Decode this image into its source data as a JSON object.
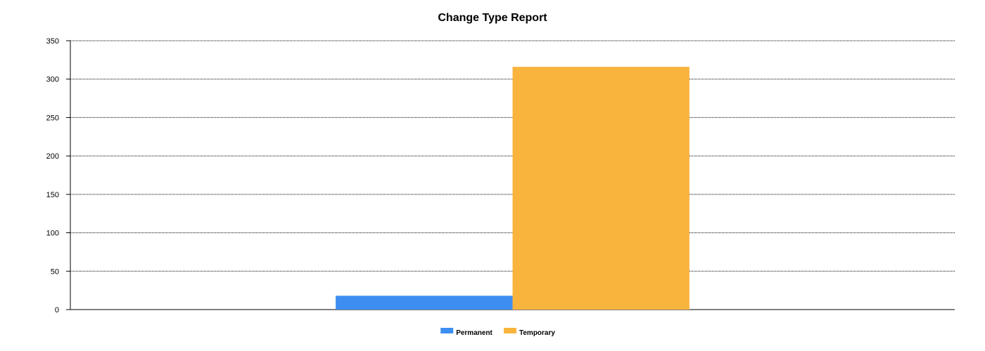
{
  "chart_data": {
    "type": "bar",
    "title": "Change Type Report",
    "xlabel": "",
    "ylabel": "",
    "ylim": [
      0,
      350
    ],
    "yticks": [
      0,
      50,
      100,
      150,
      200,
      250,
      300,
      350
    ],
    "grid": true,
    "legend_position": "bottom",
    "categories": [
      ""
    ],
    "series": [
      {
        "name": "Permanent",
        "values": [
          18
        ],
        "color": "#3d8ef0"
      },
      {
        "name": "Temporary",
        "values": [
          316
        ],
        "color": "#f9b43e"
      }
    ]
  }
}
